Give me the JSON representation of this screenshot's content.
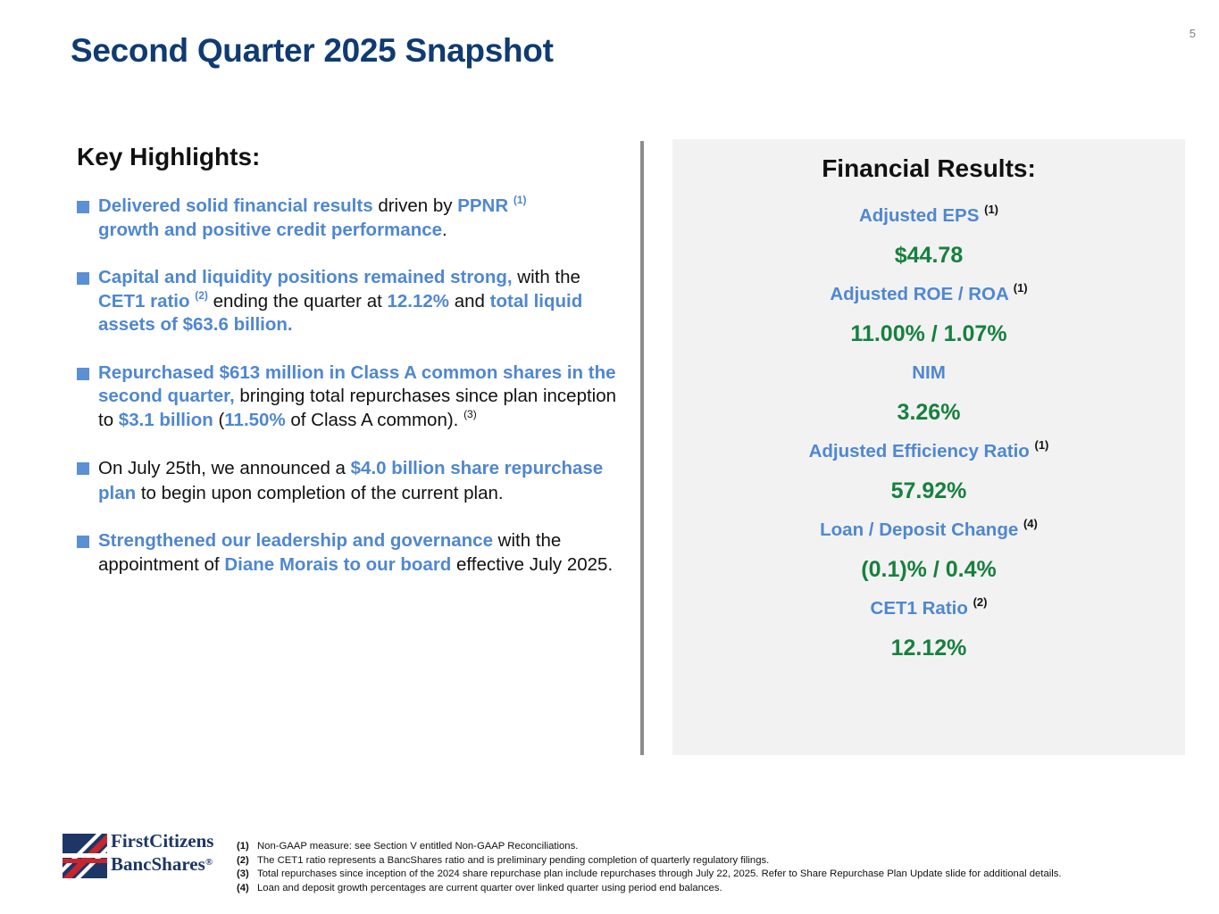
{
  "page_number": "5",
  "title": "Second Quarter 2025 Snapshot",
  "key_highlights": {
    "heading": "Key Highlights:",
    "bullets": [
      {
        "seg": [
          "Delivered solid financial results",
          " driven by ",
          "PPNR",
          "(1)",
          "growth and positive credit performance",
          "."
        ]
      },
      {
        "seg": [
          "Capital and liquidity positions remained strong,",
          " with the ",
          "CET1 ratio",
          "(2)",
          " ending the quarter at ",
          "12.12%",
          " and ",
          "total liquid assets of $63.6 billion."
        ]
      },
      {
        "seg": [
          "Repurchased $613 million in Class A common shares in the second quarter,",
          " bringing total repurchases since plan inception to ",
          "$3.1 billion",
          " (",
          "11.50%",
          " of Class A common). ",
          "(3)"
        ]
      },
      {
        "seg": [
          "On July 25th, we announced a ",
          "$4.0 billion share repurchase plan",
          " to begin upon completion of the current plan."
        ]
      },
      {
        "seg": [
          "Strengthened our leadership and governance",
          " with the appointment of ",
          "Diane Morais to our board",
          " effective July 2025."
        ]
      }
    ]
  },
  "financial_results": {
    "heading": "Financial Results:",
    "metrics": [
      {
        "label": "Adjusted EPS",
        "note": "(1)",
        "value": "$44.78"
      },
      {
        "label": "Adjusted ROE / ROA",
        "note": "(1)",
        "value": "11.00% / 1.07%"
      },
      {
        "label": "NIM",
        "note": "",
        "value": "3.26%"
      },
      {
        "label": "Adjusted Efficiency Ratio",
        "note": "(1)",
        "value": "57.92%"
      },
      {
        "label": "Loan / Deposit Change",
        "note": "(4)",
        "value": "(0.1)% / 0.4%"
      },
      {
        "label": "CET1 Ratio",
        "note": "(2)",
        "value": "12.12%"
      }
    ]
  },
  "logo": {
    "line1": "FirstCitizens",
    "line2": "BancShares",
    "mark": "®"
  },
  "footnotes": [
    {
      "num": "(1)",
      "text": "Non-GAAP measure: see Section V entitled Non-GAAP Reconciliations."
    },
    {
      "num": "(2)",
      "text": "The CET1 ratio represents a BancShares ratio and is preliminary pending completion of quarterly regulatory filings."
    },
    {
      "num": "(3)",
      "text": "Total repurchases since inception of the 2024 share repurchase plan include repurchases through July 22, 2025. Refer to Share Repurchase Plan Update slide for additional details."
    },
    {
      "num": "(4)",
      "text": "Loan and deposit growth percentages are current quarter over linked quarter using period end balances."
    }
  ],
  "colors": {
    "title": "#0f3b72",
    "highlight": "#4f87d1",
    "value_green": "#17803e",
    "panel_bg": "#f2f2f2",
    "divider": "#8c8c8c",
    "logo_red": "#c8252c",
    "logo_navy": "#1d3666"
  }
}
